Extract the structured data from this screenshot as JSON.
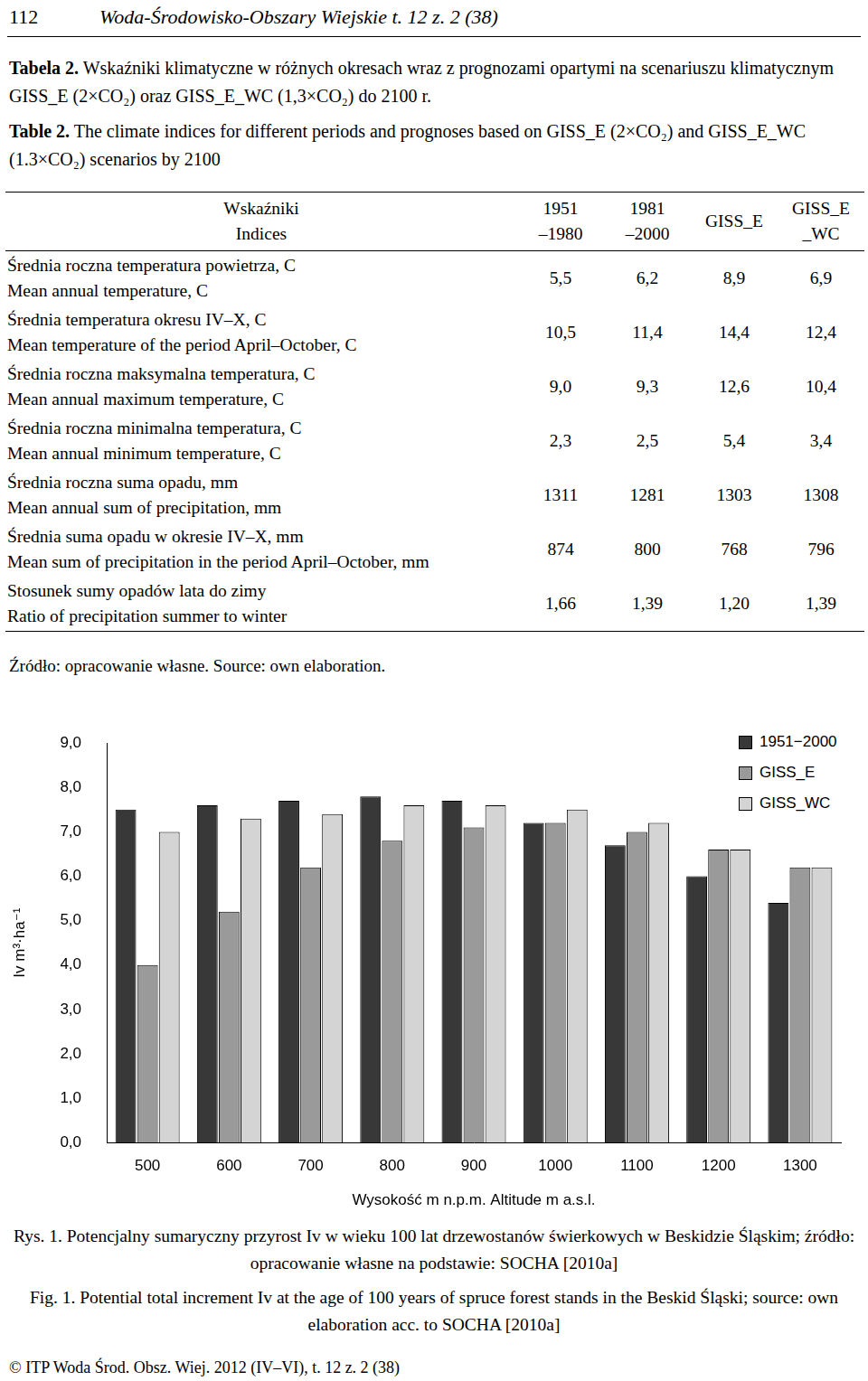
{
  "header": {
    "page": "112",
    "journal": "Woda-Środowisko-Obszary Wiejskie t. 12 z. 2 (38)"
  },
  "titles": [
    {
      "label": "Tabela 2.",
      "text": "Wskaźniki klimatyczne w różnych okresach wraz z prognozami opartymi na scenariuszu klimatycznym GISS_E (2×CO₂) oraz GISS_E_WC (1,3×CO₂) do 2100 r."
    },
    {
      "label": "Table 2.",
      "text": "The climate indices for different periods and prognoses based on GISS_E (2×CO₂) and GISS_E_WC (1.3×CO₂) scenarios by 2100"
    }
  ],
  "table": {
    "header": [
      [
        "Wskaźniki",
        "Indices"
      ],
      [
        "1951",
        "–1980"
      ],
      [
        "1981",
        "–2000"
      ],
      [
        "GISS_E"
      ],
      [
        "GISS_E",
        "_WC"
      ]
    ],
    "rows": [
      [
        [
          "Średnia roczna temperatura powietrza, C",
          "Mean annual temperature, C"
        ],
        "5,5",
        "6,2",
        "8,9",
        "6,9"
      ],
      [
        [
          "Średnia temperatura okresu IV–X, C",
          "Mean temperature of the period April–October, C"
        ],
        "10,5",
        "11,4",
        "14,4",
        "12,4"
      ],
      [
        [
          "Średnia roczna maksymalna temperatura, C",
          "Mean annual maximum temperature, C"
        ],
        "9,0",
        "9,3",
        "12,6",
        "10,4"
      ],
      [
        [
          "Średnia roczna minimalna temperatura, C",
          "Mean annual minimum temperature, C"
        ],
        "2,3",
        "2,5",
        "5,4",
        "3,4"
      ],
      [
        [
          "Średnia roczna suma opadu, mm",
          "Mean annual sum of precipitation, mm"
        ],
        "1311",
        "1281",
        "1303",
        "1308"
      ],
      [
        [
          "Średnia suma opadu w okresie IV–X, mm",
          "Mean sum of precipitation in the period April–October, mm"
        ],
        "874",
        "800",
        "768",
        "796"
      ],
      [
        [
          "Stosunek sumy opadów lata do zimy",
          "Ratio of precipitation summer to winter"
        ],
        "1,66",
        "1,39",
        "1,20",
        "1,39"
      ]
    ]
  },
  "source": "Źródło: opracowanie własne.   Source: own elaboration.",
  "chart_data": {
    "type": "bar",
    "categories": [
      "500",
      "600",
      "700",
      "800",
      "900",
      "1000",
      "1100",
      "1200",
      "1300"
    ],
    "x_label": "Wysokość m n.p.m. Altitude m a.s.l.",
    "y_label": "Iv m³·ha⁻¹",
    "series": [
      {
        "name": "1951−2000",
        "color": "#383838",
        "values": [
          7.5,
          7.6,
          7.7,
          7.8,
          7.7,
          7.2,
          6.7,
          6.0,
          5.4
        ]
      },
      {
        "name": "GISS_E",
        "color": "#9a9a9a",
        "values": [
          4.0,
          5.2,
          6.2,
          6.8,
          7.1,
          7.2,
          7.0,
          6.6,
          6.2
        ]
      },
      {
        "name": "GISS_WC",
        "color": "#d4d4d4",
        "values": [
          7.0,
          7.3,
          7.4,
          7.6,
          7.6,
          7.5,
          7.2,
          6.6,
          6.2
        ]
      }
    ],
    "ylim": [
      0,
      9
    ],
    "yticks": [
      {
        "value": 0,
        "label": "0,0"
      },
      {
        "value": 1,
        "label": "1,0"
      },
      {
        "value": 2,
        "label": "2,0"
      },
      {
        "value": 3,
        "label": "3,0"
      },
      {
        "value": 4,
        "label": "4,0"
      },
      {
        "value": 5,
        "label": "5,0"
      },
      {
        "value": 6,
        "label": "6,0"
      },
      {
        "value": 7,
        "label": "7,0"
      },
      {
        "value": 8,
        "label": "8,0"
      },
      {
        "value": 9,
        "label": "9,0"
      }
    ],
    "grid": false,
    "legend": "upper right"
  },
  "captions": [
    "Rys. 1. Potencjalny sumaryczny przyrost Iv w wieku 100 lat drzewostanów świerkowych w Beskidzie Śląskim; źródło: opracowanie własne na podstawie: SOCHA [2010a]",
    "Fig. 1. Potential total increment Iv at the age of 100 years of spruce forest stands in the Beskid Śląski; source: own elaboration acc. to SOCHA [2010a]"
  ],
  "footer": "© ITP Woda Środ. Obsz. Wiej. 2012 (IV–VI), t. 12 z. 2 (38)"
}
